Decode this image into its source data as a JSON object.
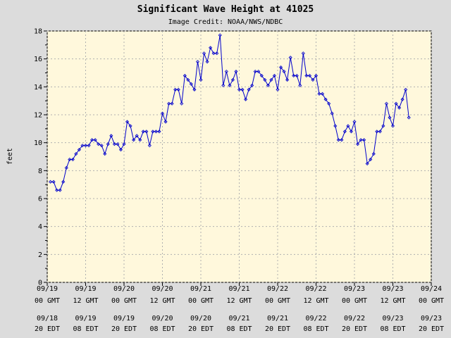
{
  "chart_data": {
    "type": "line",
    "title": "Significant Wave Height at 41025",
    "subtitle": "Image Credit: NOAA/NWS/NDBC",
    "ylabel": "feet",
    "color": "#0000cc",
    "grid": true,
    "x": [
      1,
      2,
      3,
      4,
      5,
      6,
      7,
      8,
      9,
      10,
      11,
      12,
      13,
      14,
      15,
      16,
      17,
      18,
      19,
      20,
      21,
      22,
      23,
      24,
      25,
      26,
      27,
      28,
      29,
      30,
      31,
      32,
      33,
      34,
      35,
      36,
      37,
      38,
      39,
      40,
      41,
      42,
      43,
      44,
      45,
      46,
      47,
      48,
      49,
      50,
      51,
      52,
      53,
      54,
      55,
      56,
      57,
      58,
      59,
      60,
      61,
      62,
      63,
      64,
      65,
      66,
      67,
      68,
      69,
      70,
      71,
      72,
      73,
      74,
      75,
      76,
      77,
      78,
      79,
      80,
      81,
      82,
      83,
      84,
      85,
      86,
      87,
      88,
      89,
      90,
      91,
      92,
      93,
      94,
      95,
      96,
      97,
      98,
      99,
      100,
      101,
      102,
      103,
      104,
      105,
      106,
      107,
      108,
      109,
      110,
      111,
      112,
      113
    ],
    "values": [
      7.2,
      7.2,
      6.6,
      6.6,
      7.2,
      8.2,
      8.8,
      8.8,
      9.2,
      9.5,
      9.8,
      9.8,
      9.8,
      10.2,
      10.2,
      9.9,
      9.8,
      9.2,
      9.9,
      10.5,
      9.9,
      9.9,
      9.5,
      9.9,
      11.5,
      11.2,
      10.2,
      10.5,
      10.2,
      10.8,
      10.8,
      9.8,
      10.8,
      10.8,
      10.8,
      12.1,
      11.5,
      12.8,
      12.8,
      13.8,
      13.8,
      12.8,
      14.8,
      14.5,
      14.2,
      13.8,
      15.8,
      14.5,
      16.4,
      15.8,
      16.8,
      16.4,
      16.4,
      17.7,
      14.1,
      15.1,
      14.1,
      14.5,
      15.1,
      13.8,
      13.8,
      13.1,
      13.8,
      14.1,
      15.1,
      15.1,
      14.8,
      14.5,
      14.1,
      14.5,
      14.8,
      13.8,
      15.4,
      15.1,
      14.5,
      16.1,
      14.8,
      14.8,
      14.1,
      16.4,
      14.8,
      14.8,
      14.5,
      14.8,
      13.5,
      13.5,
      13.1,
      12.8,
      12.1,
      11.2,
      10.2,
      10.2,
      10.8,
      11.2,
      10.8,
      11.5,
      9.9,
      10.2,
      10.2,
      8.5,
      8.8,
      9.2,
      10.8,
      10.8,
      11.2,
      12.8,
      11.8,
      11.2,
      12.8,
      12.5,
      13.1,
      13.8,
      11.8
    ],
    "xlim": [
      0,
      120
    ],
    "xticks": [
      {
        "value": 0,
        "label": [
          "09/19",
          "00 GMT",
          "09/18",
          "20 EDT"
        ]
      },
      {
        "value": 12,
        "label": [
          "09/19",
          "12 GMT",
          "09/19",
          "08 EDT"
        ]
      },
      {
        "value": 24,
        "label": [
          "09/20",
          "00 GMT",
          "09/19",
          "20 EDT"
        ]
      },
      {
        "value": 36,
        "label": [
          "09/20",
          "12 GMT",
          "09/20",
          "08 EDT"
        ]
      },
      {
        "value": 48,
        "label": [
          "09/21",
          "00 GMT",
          "09/20",
          "20 EDT"
        ]
      },
      {
        "value": 60,
        "label": [
          "09/21",
          "12 GMT",
          "09/21",
          "08 EDT"
        ]
      },
      {
        "value": 72,
        "label": [
          "09/22",
          "00 GMT",
          "09/21",
          "20 EDT"
        ]
      },
      {
        "value": 84,
        "label": [
          "09/22",
          "12 GMT",
          "09/22",
          "08 EDT"
        ]
      },
      {
        "value": 96,
        "label": [
          "09/23",
          "00 GMT",
          "09/22",
          "20 EDT"
        ]
      },
      {
        "value": 108,
        "label": [
          "09/23",
          "12 GMT",
          "09/23",
          "08 EDT"
        ]
      },
      {
        "value": 120,
        "label": [
          "09/24",
          "00 GMT",
          "09/23",
          "20 EDT"
        ]
      }
    ],
    "ylim": [
      0,
      18
    ],
    "yticks": [
      0,
      2,
      4,
      6,
      8,
      10,
      12,
      14,
      16,
      18
    ],
    "yminorticks": [
      1,
      3,
      5,
      7,
      9,
      11,
      13,
      15,
      17
    ]
  }
}
